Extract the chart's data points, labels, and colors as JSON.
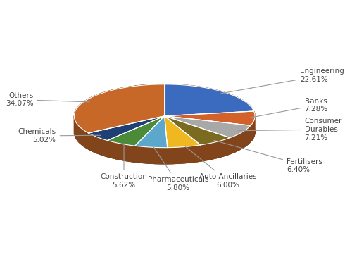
{
  "labels": [
    "Engineering",
    "Banks",
    "Consumer\nDurables",
    "Fertilisers",
    "Auto Ancillaries",
    "Pharmaceuticals",
    "Construction",
    "Chemicals",
    "Others"
  ],
  "values": [
    22.61,
    7.28,
    7.21,
    6.4,
    6.0,
    5.8,
    5.62,
    5.02,
    34.07
  ],
  "colors": [
    "#3A6BBF",
    "#D2622A",
    "#A8A8A8",
    "#7A6B20",
    "#F0B820",
    "#5BA8CC",
    "#4A8A38",
    "#1F4075",
    "#C86828",
    "#F0A878"
  ],
  "startangle": 90,
  "background_color": "#ffffff",
  "label_fontsize": 8
}
